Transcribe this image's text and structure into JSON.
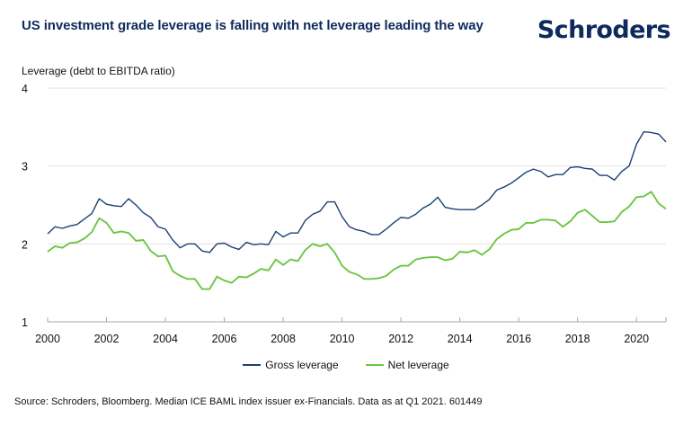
{
  "header": {
    "title": "US investment grade leverage is falling with net leverage leading the way",
    "logo": "Schroders"
  },
  "footer": {
    "source": "Source: Schroders, Bloomberg. Median ICE BAML index issuer ex-Financials. Data as at Q1 2021. 601449"
  },
  "colors": {
    "brand": "#0e2a5c",
    "gross": "#1b3f73",
    "net": "#6cc644",
    "grid": "#e3e3e3",
    "axis": "#a6a6a6"
  },
  "chart_data": {
    "type": "line",
    "title": "US investment grade leverage is falling with net leverage leading the way",
    "xlabel": "",
    "ylabel": "Leverage (debt to EBITDA ratio)",
    "x_frequency": "quarterly",
    "x_start": "2000 Q1",
    "x_end": "2021 Q1",
    "xlim": [
      2000,
      2021
    ],
    "ylim": [
      1,
      4
    ],
    "x_ticks": [
      "2000",
      "2002",
      "2004",
      "2006",
      "2008",
      "2010",
      "2012",
      "2014",
      "2016",
      "2018",
      "2020"
    ],
    "y_ticks": [
      "1",
      "2",
      "3",
      "4"
    ],
    "grid": "horizontal",
    "legend": "bottom-center",
    "series": [
      {
        "name": "Gross leverage",
        "values": [
          2.13,
          2.22,
          2.2,
          2.23,
          2.25,
          2.32,
          2.39,
          2.58,
          2.51,
          2.49,
          2.48,
          2.58,
          2.5,
          2.4,
          2.34,
          2.22,
          2.19,
          2.05,
          1.95,
          2.0,
          2.0,
          1.91,
          1.89,
          2.0,
          2.01,
          1.96,
          1.93,
          2.02,
          1.99,
          2.0,
          1.99,
          2.16,
          2.09,
          2.14,
          2.14,
          2.3,
          2.38,
          2.42,
          2.54,
          2.54,
          2.35,
          2.22,
          2.18,
          2.16,
          2.12,
          2.12,
          2.19,
          2.27,
          2.34,
          2.33,
          2.38,
          2.46,
          2.51,
          2.6,
          2.47,
          2.45,
          2.44,
          2.44,
          2.44,
          2.5,
          2.57,
          2.69,
          2.73,
          2.78,
          2.85,
          2.92,
          2.96,
          2.93,
          2.86,
          2.89,
          2.89,
          2.98,
          2.99,
          2.97,
          2.96,
          2.88,
          2.88,
          2.82,
          2.93,
          3.0,
          3.28,
          3.44,
          3.43,
          3.41,
          3.31
        ]
      },
      {
        "name": "Net leverage",
        "values": [
          1.9,
          1.97,
          1.95,
          2.01,
          2.02,
          2.07,
          2.15,
          2.33,
          2.27,
          2.14,
          2.16,
          2.14,
          2.04,
          2.05,
          1.91,
          1.84,
          1.85,
          1.65,
          1.59,
          1.55,
          1.55,
          1.42,
          1.42,
          1.58,
          1.53,
          1.5,
          1.58,
          1.57,
          1.62,
          1.68,
          1.66,
          1.8,
          1.73,
          1.8,
          1.78,
          1.92,
          2.0,
          1.97,
          2.0,
          1.89,
          1.72,
          1.64,
          1.61,
          1.55,
          1.55,
          1.56,
          1.59,
          1.67,
          1.72,
          1.72,
          1.8,
          1.82,
          1.83,
          1.83,
          1.79,
          1.81,
          1.9,
          1.89,
          1.92,
          1.86,
          1.93,
          2.06,
          2.13,
          2.18,
          2.19,
          2.27,
          2.27,
          2.31,
          2.31,
          2.3,
          2.22,
          2.29,
          2.4,
          2.44,
          2.36,
          2.28,
          2.28,
          2.29,
          2.41,
          2.48,
          2.6,
          2.61,
          2.67,
          2.52,
          2.45
        ]
      }
    ]
  }
}
